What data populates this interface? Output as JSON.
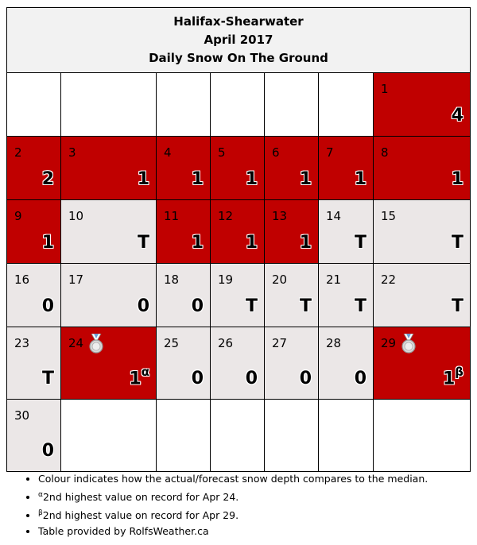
{
  "header": {
    "station": "Halifax-Shearwater",
    "period": "April 2017",
    "metric": "Daily Snow On The Ground"
  },
  "weeks": [
    [
      null,
      null,
      null,
      null,
      null,
      null,
      {
        "day": "1",
        "value": "4",
        "color": "red"
      }
    ],
    [
      {
        "day": "2",
        "value": "2",
        "color": "red"
      },
      {
        "day": "3",
        "value": "1",
        "color": "red"
      },
      {
        "day": "4",
        "value": "1",
        "color": "red"
      },
      {
        "day": "5",
        "value": "1",
        "color": "red"
      },
      {
        "day": "6",
        "value": "1",
        "color": "red"
      },
      {
        "day": "7",
        "value": "1",
        "color": "red"
      },
      {
        "day": "8",
        "value": "1",
        "color": "red"
      }
    ],
    [
      {
        "day": "9",
        "value": "1",
        "color": "red"
      },
      {
        "day": "10",
        "value": "T",
        "color": "grey"
      },
      {
        "day": "11",
        "value": "1",
        "color": "red"
      },
      {
        "day": "12",
        "value": "1",
        "color": "red"
      },
      {
        "day": "13",
        "value": "1",
        "color": "red"
      },
      {
        "day": "14",
        "value": "T",
        "color": "grey"
      },
      {
        "day": "15",
        "value": "T",
        "color": "grey"
      }
    ],
    [
      {
        "day": "16",
        "value": "0",
        "color": "grey"
      },
      {
        "day": "17",
        "value": "0",
        "color": "grey"
      },
      {
        "day": "18",
        "value": "0",
        "color": "grey"
      },
      {
        "day": "19",
        "value": "T",
        "color": "grey"
      },
      {
        "day": "20",
        "value": "T",
        "color": "grey"
      },
      {
        "day": "21",
        "value": "T",
        "color": "grey"
      },
      {
        "day": "22",
        "value": "T",
        "color": "grey"
      }
    ],
    [
      {
        "day": "23",
        "value": "T",
        "color": "grey"
      },
      {
        "day": "24",
        "value": "1",
        "sup": "α",
        "color": "red",
        "medal": "silver-medal-icon"
      },
      {
        "day": "25",
        "value": "0",
        "color": "grey"
      },
      {
        "day": "26",
        "value": "0",
        "color": "grey"
      },
      {
        "day": "27",
        "value": "0",
        "color": "grey"
      },
      {
        "day": "28",
        "value": "0",
        "color": "grey"
      },
      {
        "day": "29",
        "value": "1",
        "sup": "β",
        "color": "red",
        "medal": "silver-medal-icon"
      }
    ],
    [
      {
        "day": "30",
        "value": "0",
        "color": "grey"
      },
      null,
      null,
      null,
      null,
      null,
      null
    ]
  ],
  "colors": {
    "red": "#c00000",
    "grey": "#ebe7e7",
    "header_bg": "#f2f2f2"
  },
  "notes": [
    {
      "sup": "",
      "text": "Colour indicates how the actual/forecast snow depth compares to the median."
    },
    {
      "sup": "α",
      "text": "2nd highest value on record for Apr 24."
    },
    {
      "sup": "β",
      "text": "2nd highest value on record for Apr 29."
    },
    {
      "sup": "",
      "text": "Table provided by RolfsWeather.ca"
    }
  ]
}
